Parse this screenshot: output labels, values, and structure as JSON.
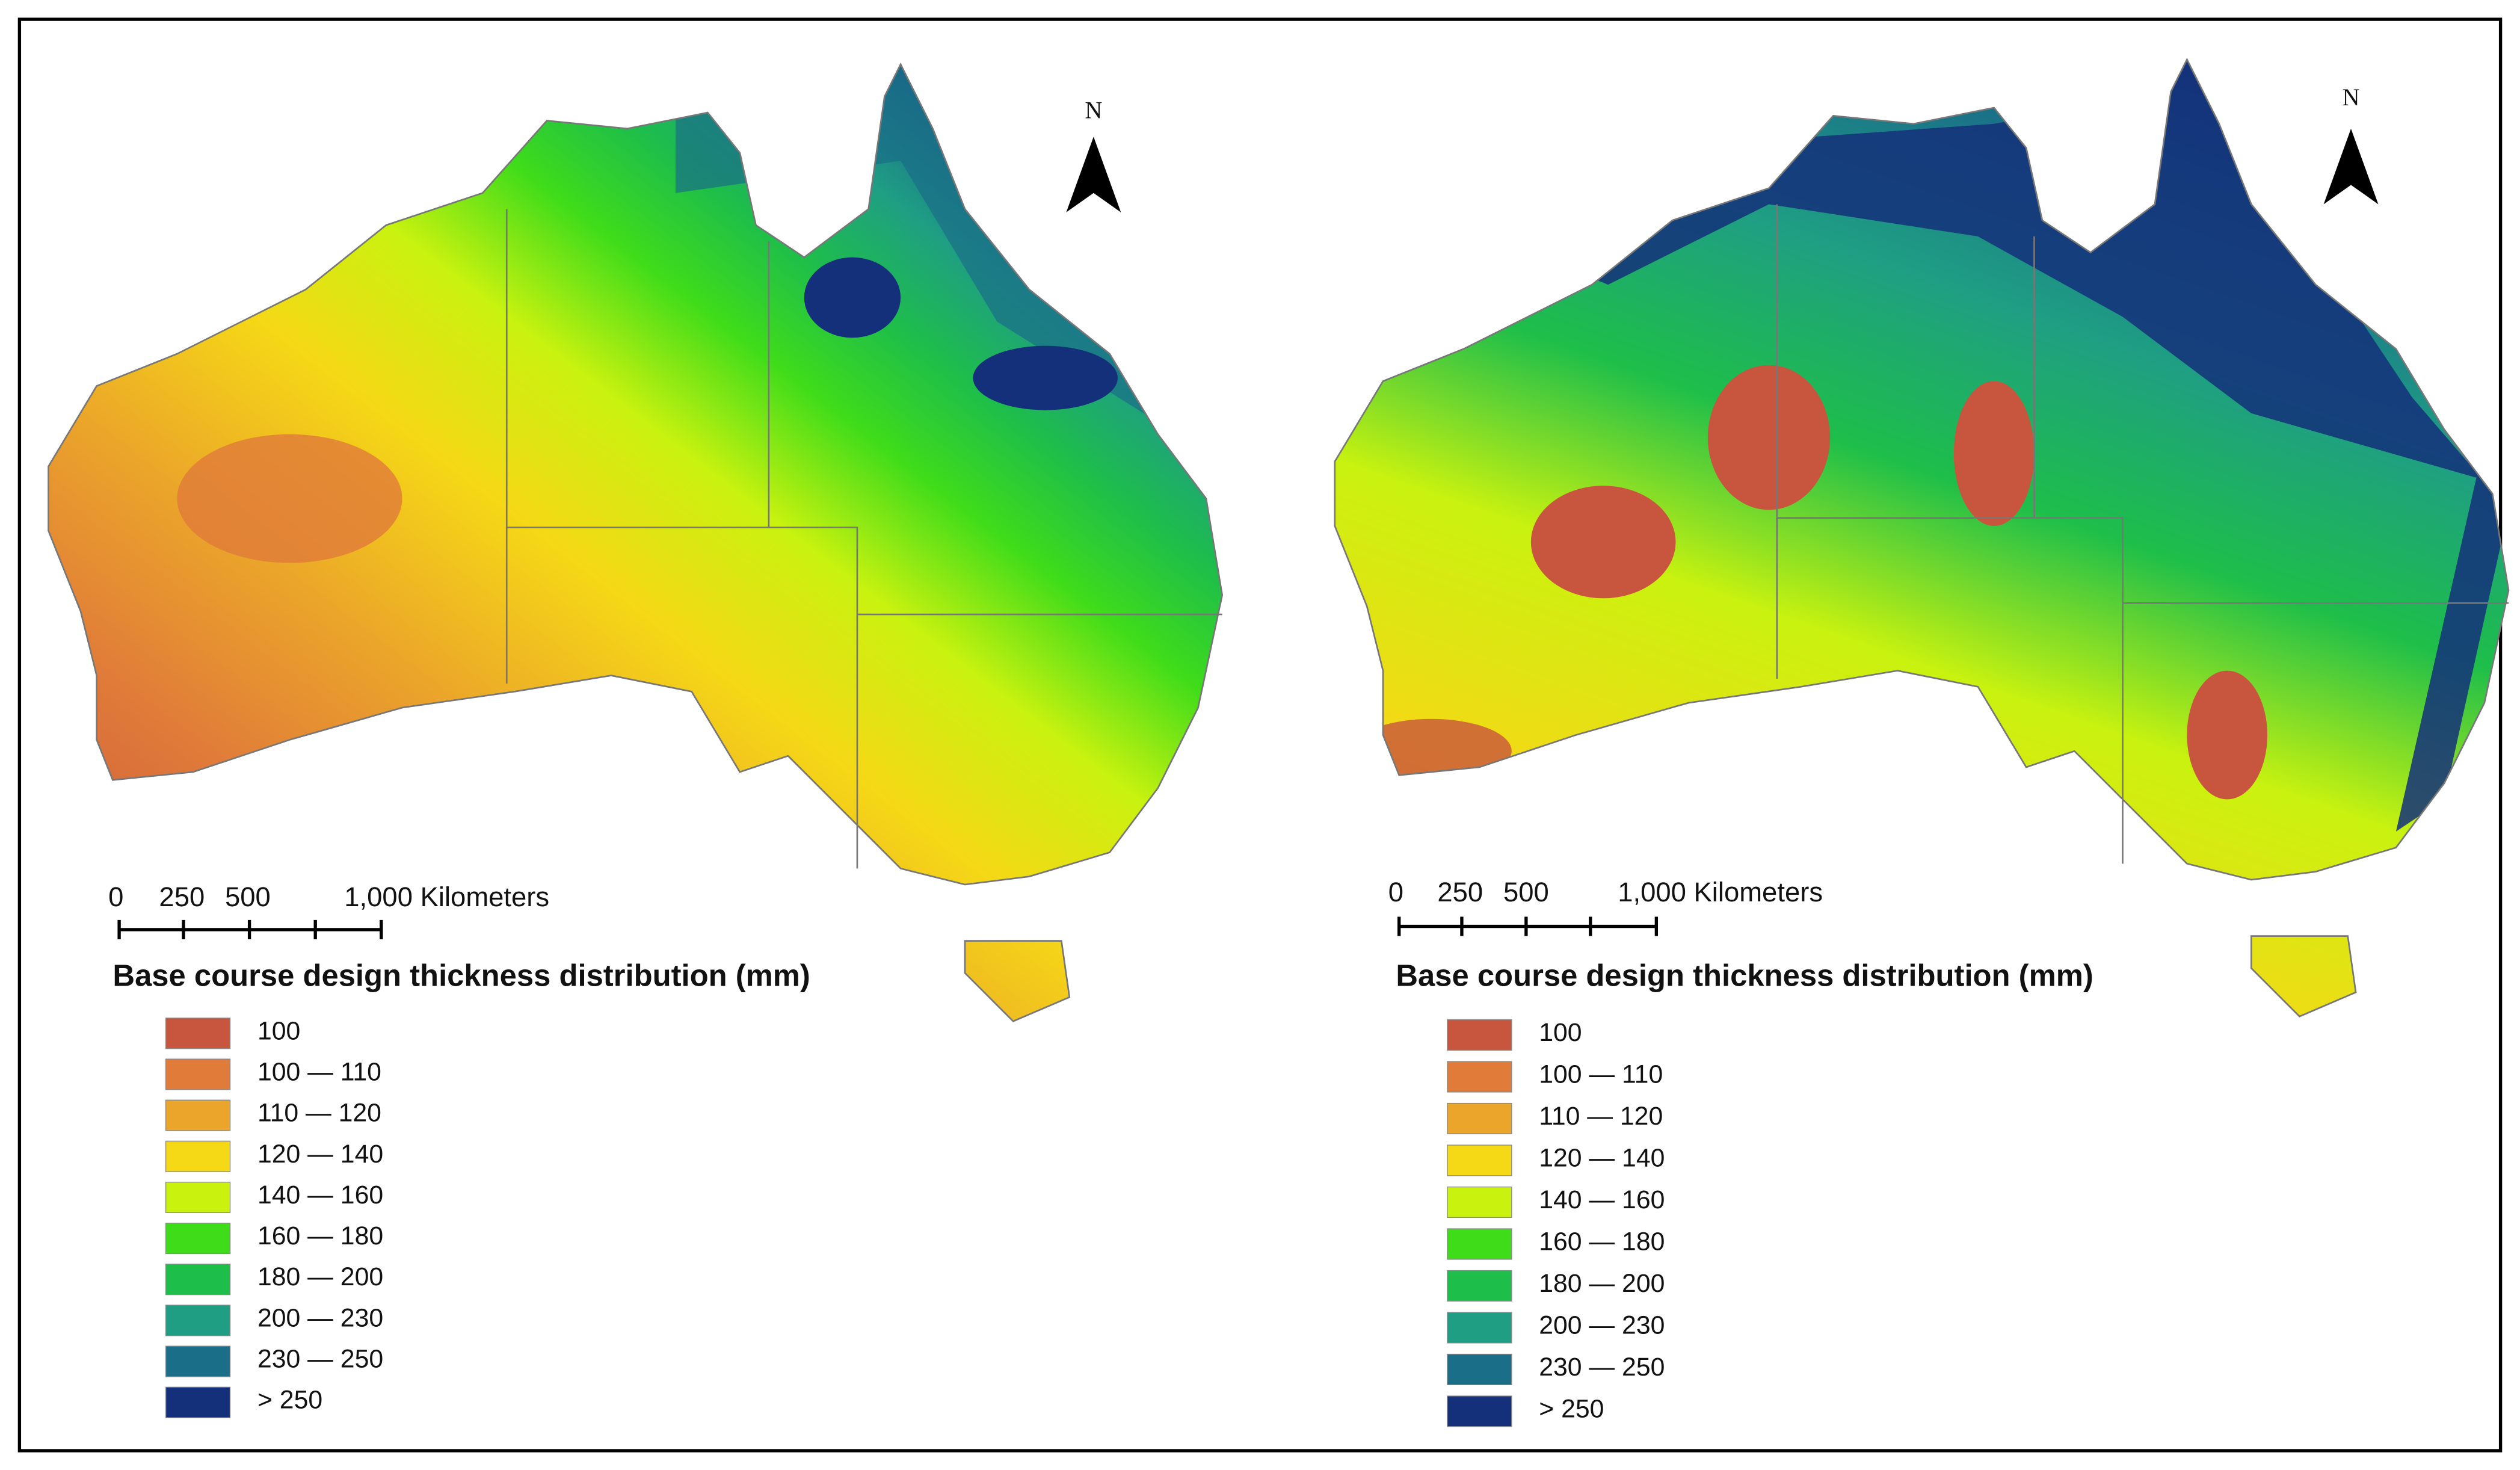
{
  "maps": [
    {
      "north": "N",
      "scale_labels": [
        "0",
        "250",
        "500",
        "1,000 Kilometers"
      ],
      "legend_title": "Base course design thickness distribution (mm)",
      "legend": [
        {
          "label": "100",
          "color": "#c8553d"
        },
        {
          "label": "100 — 110",
          "color": "#e07b39"
        },
        {
          "label": "110 — 120",
          "color": "#eba52a"
        },
        {
          "label": "120 — 140",
          "color": "#f5d816"
        },
        {
          "label": "140 — 160",
          "color": "#c9f20f"
        },
        {
          "label": "160 — 180",
          "color": "#3fdc1a"
        },
        {
          "label": "180 — 200",
          "color": "#1ebe4a"
        },
        {
          "label": "200 — 230",
          "color": "#1f9e84"
        },
        {
          "label": "230 — 250",
          "color": "#1a6e88"
        },
        {
          "label": "> 250",
          "color": "#14307a"
        }
      ]
    },
    {
      "north": "N",
      "scale_labels": [
        "0",
        "250",
        "500",
        "1,000 Kilometers"
      ],
      "legend_title": "Base course design thickness distribution (mm)",
      "legend": [
        {
          "label": "100",
          "color": "#c8553d"
        },
        {
          "label": "100 — 110",
          "color": "#e07b39"
        },
        {
          "label": "110 — 120",
          "color": "#eba52a"
        },
        {
          "label": "120 — 140",
          "color": "#f5d816"
        },
        {
          "label": "140 — 160",
          "color": "#c9f20f"
        },
        {
          "label": "160 — 180",
          "color": "#3fdc1a"
        },
        {
          "label": "180 — 200",
          "color": "#1ebe4a"
        },
        {
          "label": "200 — 230",
          "color": "#1f9e84"
        },
        {
          "label": "230 — 250",
          "color": "#1a6e88"
        },
        {
          "label": "> 250",
          "color": "#14307a"
        }
      ]
    }
  ]
}
